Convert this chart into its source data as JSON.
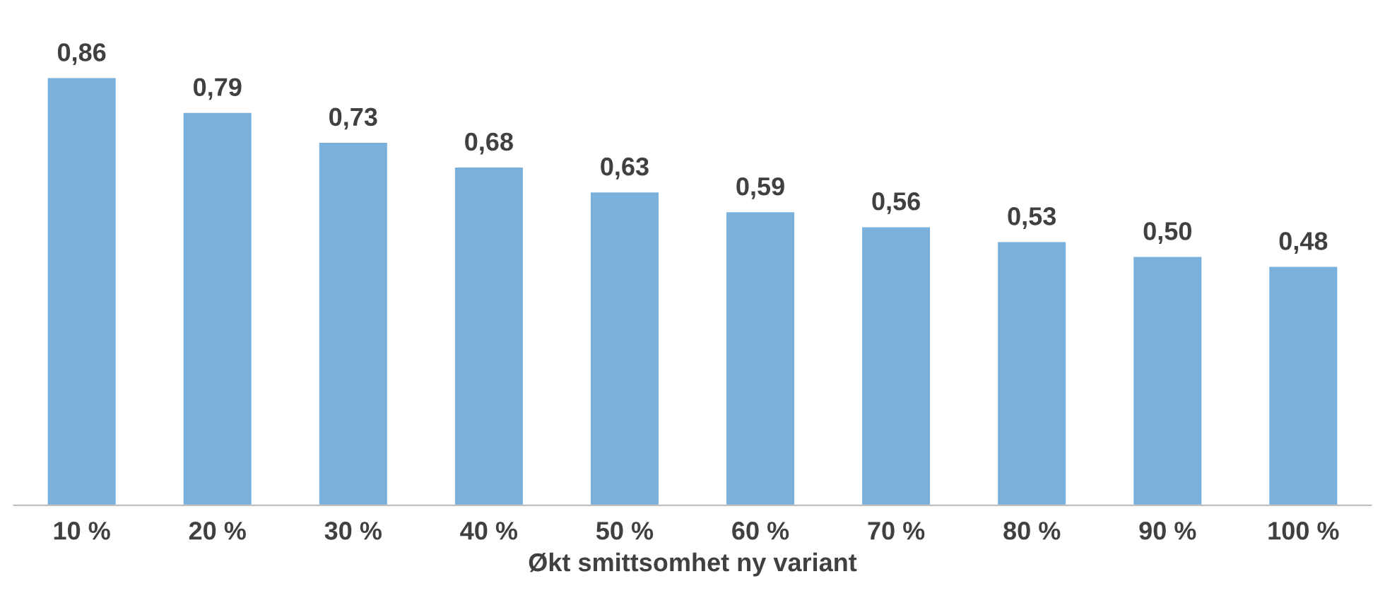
{
  "chart_data": {
    "type": "bar",
    "xlabel": "Økt smittsomhet ny variant",
    "categories": [
      "10 %",
      "20 %",
      "30 %",
      "40 %",
      "50 %",
      "60 %",
      "70 %",
      "80 %",
      "90 %",
      "100 %"
    ],
    "values": [
      0.86,
      0.79,
      0.73,
      0.68,
      0.63,
      0.59,
      0.56,
      0.53,
      0.5,
      0.48
    ],
    "value_labels": [
      "0,86",
      "0,79",
      "0,73",
      "0,68",
      "0,63",
      "0,59",
      "0,56",
      "0,53",
      "0,50",
      "0,48"
    ],
    "color": "#7ab1dc",
    "grid": false,
    "legend": false
  }
}
